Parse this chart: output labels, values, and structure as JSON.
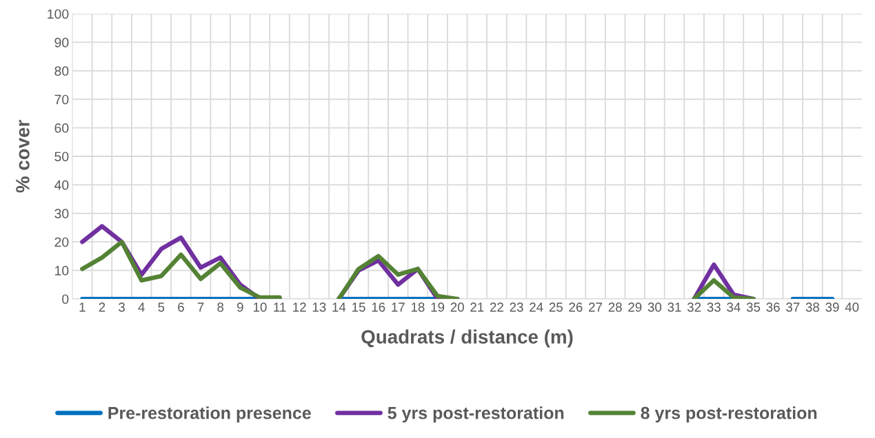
{
  "chart_data": {
    "type": "line",
    "xlabel": "Quadrats / distance (m)",
    "ylabel": "% cover",
    "categories": [
      "1",
      "2",
      "3",
      "4",
      "5",
      "6",
      "7",
      "8",
      "9",
      "10",
      "11",
      "12",
      "13",
      "14",
      "15",
      "16",
      "17",
      "18",
      "19",
      "20",
      "21",
      "22",
      "23",
      "24",
      "25",
      "26",
      "27",
      "28",
      "29",
      "30",
      "31",
      "32",
      "33",
      "34",
      "35",
      "36",
      "37",
      "38",
      "39",
      "40"
    ],
    "ylim": [
      0,
      100
    ],
    "yticks": [
      0,
      10,
      20,
      30,
      40,
      50,
      60,
      70,
      80,
      90,
      100
    ],
    "grid": true,
    "legend": "bottom",
    "marker": "none",
    "line_style": "solid",
    "series": [
      {
        "name": "Pre-restoration presence",
        "color": "#0070c0",
        "values": [
          0,
          0,
          0,
          0,
          0,
          0,
          0,
          0,
          0,
          0,
          0,
          null,
          null,
          0,
          0,
          0,
          0,
          0,
          0,
          0,
          null,
          null,
          null,
          null,
          null,
          null,
          null,
          null,
          null,
          null,
          null,
          0,
          0,
          0,
          0,
          null,
          0,
          0,
          0,
          null
        ]
      },
      {
        "name": "5 yrs post-restoration",
        "color": "#7030a0",
        "values": [
          20,
          25.5,
          20,
          8.5,
          17.5,
          21.5,
          11,
          14.5,
          5,
          0,
          0,
          null,
          null,
          0,
          10,
          13.5,
          5,
          10.5,
          0,
          0,
          null,
          null,
          null,
          null,
          null,
          null,
          null,
          null,
          null,
          null,
          null,
          0,
          12,
          1.5,
          0,
          null,
          null,
          null,
          null,
          null
        ]
      },
      {
        "name": "8 yrs post-restoration",
        "color": "#548235",
        "values": [
          10.5,
          14.5,
          20,
          6.5,
          8,
          15.5,
          7,
          12.5,
          4,
          0.5,
          0.5,
          null,
          null,
          0,
          10.5,
          15,
          8.5,
          10.5,
          1,
          0,
          null,
          null,
          null,
          null,
          null,
          null,
          null,
          null,
          null,
          null,
          null,
          0,
          6.5,
          0.5,
          0,
          null,
          null,
          null,
          null,
          null
        ]
      }
    ]
  }
}
